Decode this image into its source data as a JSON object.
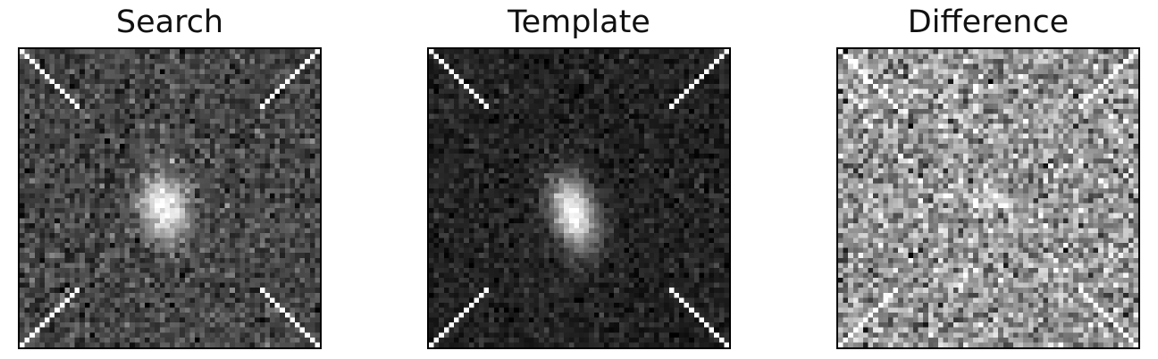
{
  "panels": [
    {
      "title": "Search",
      "image": "search-cutout"
    },
    {
      "title": "Template",
      "image": "template-cutout"
    },
    {
      "title": "Difference",
      "image": "difference-cutout"
    }
  ]
}
